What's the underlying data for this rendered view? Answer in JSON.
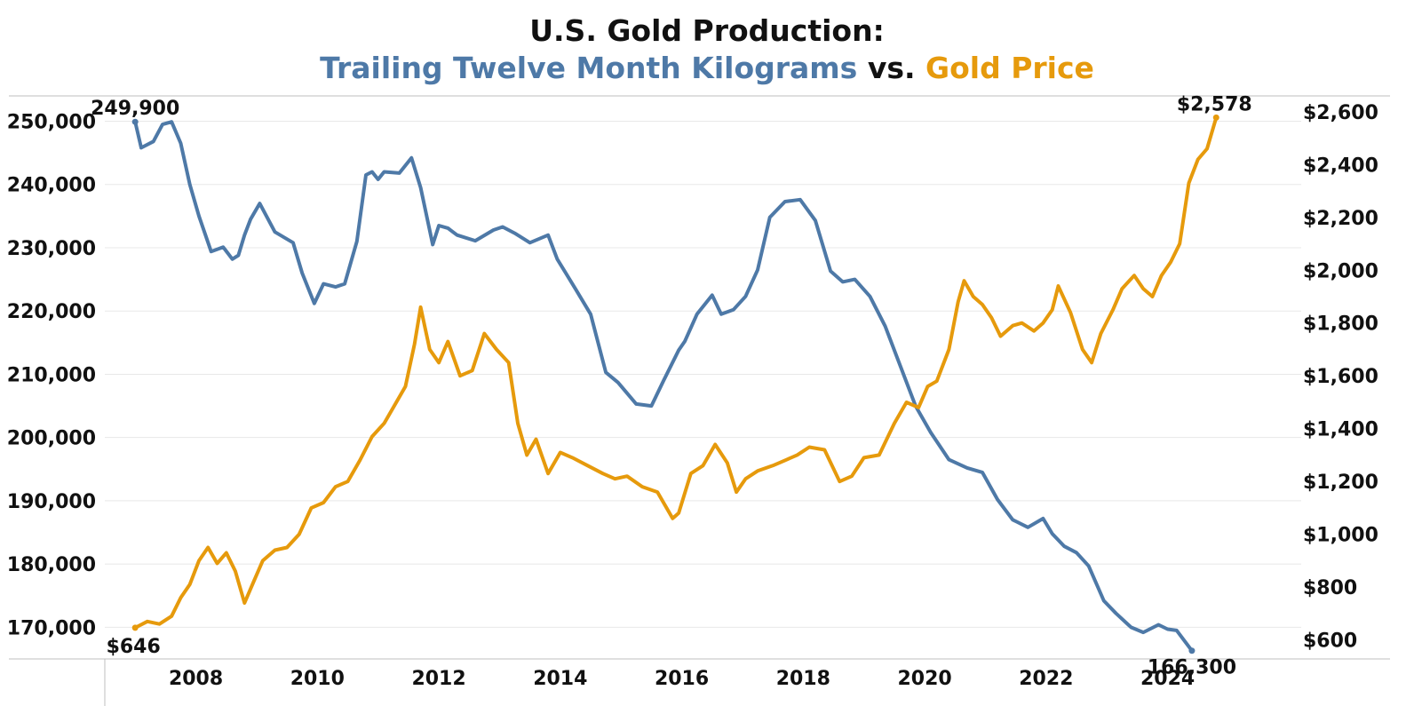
{
  "chart_data": {
    "type": "line",
    "title": "U.S. Gold Production:",
    "subtitle_parts": {
      "series1": "Trailing Twelve Month Kilograms",
      "vs": "vs.",
      "series2": "Gold Price"
    },
    "colors": {
      "production": "#4e79a7",
      "price": "#e69a0c",
      "grid": "#e8e8e8",
      "axis": "#bfbfbf"
    },
    "x_ticks": [
      "2008",
      "2010",
      "2012",
      "2014",
      "2016",
      "2018",
      "2020",
      "2022",
      "2024"
    ],
    "x_range": [
      2006.5,
      2026.2
    ],
    "y_left": {
      "range": [
        165000,
        254000
      ],
      "ticks": [
        170000,
        180000,
        190000,
        200000,
        210000,
        220000,
        230000,
        240000,
        250000
      ],
      "tick_labels": [
        "170,000",
        "180,000",
        "190,000",
        "200,000",
        "210,000",
        "220,000",
        "230,000",
        "240,000",
        "250,000"
      ]
    },
    "y_right": {
      "range": [
        528,
        2660
      ],
      "ticks": [
        600,
        800,
        1000,
        1200,
        1400,
        1600,
        1800,
        2000,
        2200,
        2400,
        2600
      ],
      "tick_labels": [
        "$600",
        "$800",
        "$1,000",
        "$1,200",
        "$1,400",
        "$1,600",
        "$1,800",
        "$2,000",
        "$2,200",
        "$2,400",
        "$2,600"
      ]
    },
    "annotations": {
      "production_start": "249,900",
      "production_end": "166,300",
      "price_start": "$646",
      "price_end": "$2,578"
    },
    "series": [
      {
        "name": "Trailing Twelve Month Kilograms",
        "axis": "left",
        "x": [
          2007.0,
          2007.1,
          2007.3,
          2007.45,
          2007.6,
          2007.75,
          2007.9,
          2008.05,
          2008.25,
          2008.45,
          2008.6,
          2008.7,
          2008.8,
          2008.9,
          2009.05,
          2009.3,
          2009.6,
          2009.75,
          2009.95,
          2010.1,
          2010.3,
          2010.45,
          2010.65,
          2010.8,
          2010.9,
          2011.0,
          2011.1,
          2011.35,
          2011.55,
          2011.7,
          2011.9,
          2012.0,
          2012.15,
          2012.3,
          2012.6,
          2012.9,
          2013.05,
          2013.25,
          2013.5,
          2013.8,
          2013.95,
          2014.25,
          2014.5,
          2014.75,
          2014.95,
          2015.25,
          2015.5,
          2015.7,
          2015.95,
          2016.05,
          2016.25,
          2016.5,
          2016.65,
          2016.85,
          2017.05,
          2017.25,
          2017.45,
          2017.7,
          2017.95,
          2018.2,
          2018.45,
          2018.65,
          2018.85,
          2019.1,
          2019.35,
          2019.6,
          2019.85,
          2020.1,
          2020.4,
          2020.7,
          2020.95,
          2021.2,
          2021.45,
          2021.7,
          2021.95,
          2022.1,
          2022.3,
          2022.5,
          2022.7,
          2022.95,
          2023.15,
          2023.4,
          2023.6,
          2023.85,
          2024.0,
          2024.15,
          2024.4
        ],
        "values": [
          249900,
          245800,
          246800,
          249500,
          249900,
          246500,
          240000,
          235000,
          229400,
          230100,
          228200,
          228800,
          232000,
          234500,
          237000,
          232500,
          230800,
          226000,
          221200,
          224300,
          223800,
          224300,
          231000,
          241500,
          242000,
          240800,
          242000,
          241800,
          244200,
          239500,
          230500,
          233500,
          233100,
          232000,
          231100,
          232800,
          233300,
          232300,
          230800,
          232000,
          228200,
          223500,
          219500,
          210300,
          208700,
          205300,
          205000,
          209000,
          213800,
          215200,
          219500,
          222500,
          219500,
          220200,
          222300,
          226500,
          234800,
          237300,
          237600,
          234300,
          226300,
          224600,
          225000,
          222300,
          217600,
          211300,
          205000,
          200800,
          196500,
          195200,
          194500,
          190200,
          187000,
          185800,
          187200,
          184800,
          182800,
          181800,
          179700,
          174200,
          172200,
          170000,
          169200,
          170400,
          169700,
          169500,
          166300
        ]
      },
      {
        "name": "Gold Price",
        "axis": "right",
        "x": [
          2007.0,
          2007.2,
          2007.4,
          2007.6,
          2007.75,
          2007.9,
          2008.05,
          2008.2,
          2008.35,
          2008.5,
          2008.65,
          2008.8,
          2008.95,
          2009.1,
          2009.3,
          2009.5,
          2009.7,
          2009.9,
          2010.1,
          2010.3,
          2010.5,
          2010.7,
          2010.9,
          2011.1,
          2011.3,
          2011.45,
          2011.6,
          2011.7,
          2011.85,
          2012.0,
          2012.15,
          2012.35,
          2012.55,
          2012.75,
          2012.95,
          2013.15,
          2013.3,
          2013.45,
          2013.6,
          2013.8,
          2014.0,
          2014.2,
          2014.45,
          2014.7,
          2014.9,
          2015.1,
          2015.35,
          2015.6,
          2015.85,
          2015.95,
          2016.15,
          2016.35,
          2016.55,
          2016.75,
          2016.9,
          2017.05,
          2017.25,
          2017.5,
          2017.7,
          2017.9,
          2018.1,
          2018.35,
          2018.6,
          2018.8,
          2019.0,
          2019.25,
          2019.5,
          2019.7,
          2019.9,
          2020.05,
          2020.2,
          2020.4,
          2020.55,
          2020.65,
          2020.8,
          2020.95,
          2021.1,
          2021.25,
          2021.45,
          2021.6,
          2021.8,
          2021.95,
          2022.1,
          2022.2,
          2022.4,
          2022.6,
          2022.75,
          2022.9,
          2023.1,
          2023.25,
          2023.45,
          2023.6,
          2023.75,
          2023.9,
          2024.05,
          2024.2,
          2024.35,
          2024.5,
          2024.65,
          2024.8
        ],
        "values": [
          646,
          670,
          660,
          690,
          760,
          810,
          900,
          950,
          890,
          930,
          860,
          740,
          820,
          900,
          940,
          950,
          1000,
          1100,
          1120,
          1180,
          1200,
          1280,
          1370,
          1420,
          1500,
          1560,
          1720,
          1860,
          1700,
          1650,
          1730,
          1600,
          1620,
          1760,
          1700,
          1650,
          1420,
          1300,
          1360,
          1230,
          1310,
          1290,
          1260,
          1230,
          1210,
          1220,
          1180,
          1160,
          1060,
          1080,
          1230,
          1260,
          1340,
          1270,
          1160,
          1210,
          1240,
          1260,
          1280,
          1300,
          1330,
          1320,
          1200,
          1220,
          1290,
          1300,
          1420,
          1500,
          1480,
          1560,
          1580,
          1700,
          1880,
          1960,
          1900,
          1870,
          1820,
          1750,
          1790,
          1800,
          1770,
          1800,
          1850,
          1940,
          1840,
          1700,
          1650,
          1760,
          1850,
          1930,
          1980,
          1930,
          1900,
          1980,
          2030,
          2100,
          2330,
          2420,
          2460,
          2578
        ]
      }
    ]
  }
}
